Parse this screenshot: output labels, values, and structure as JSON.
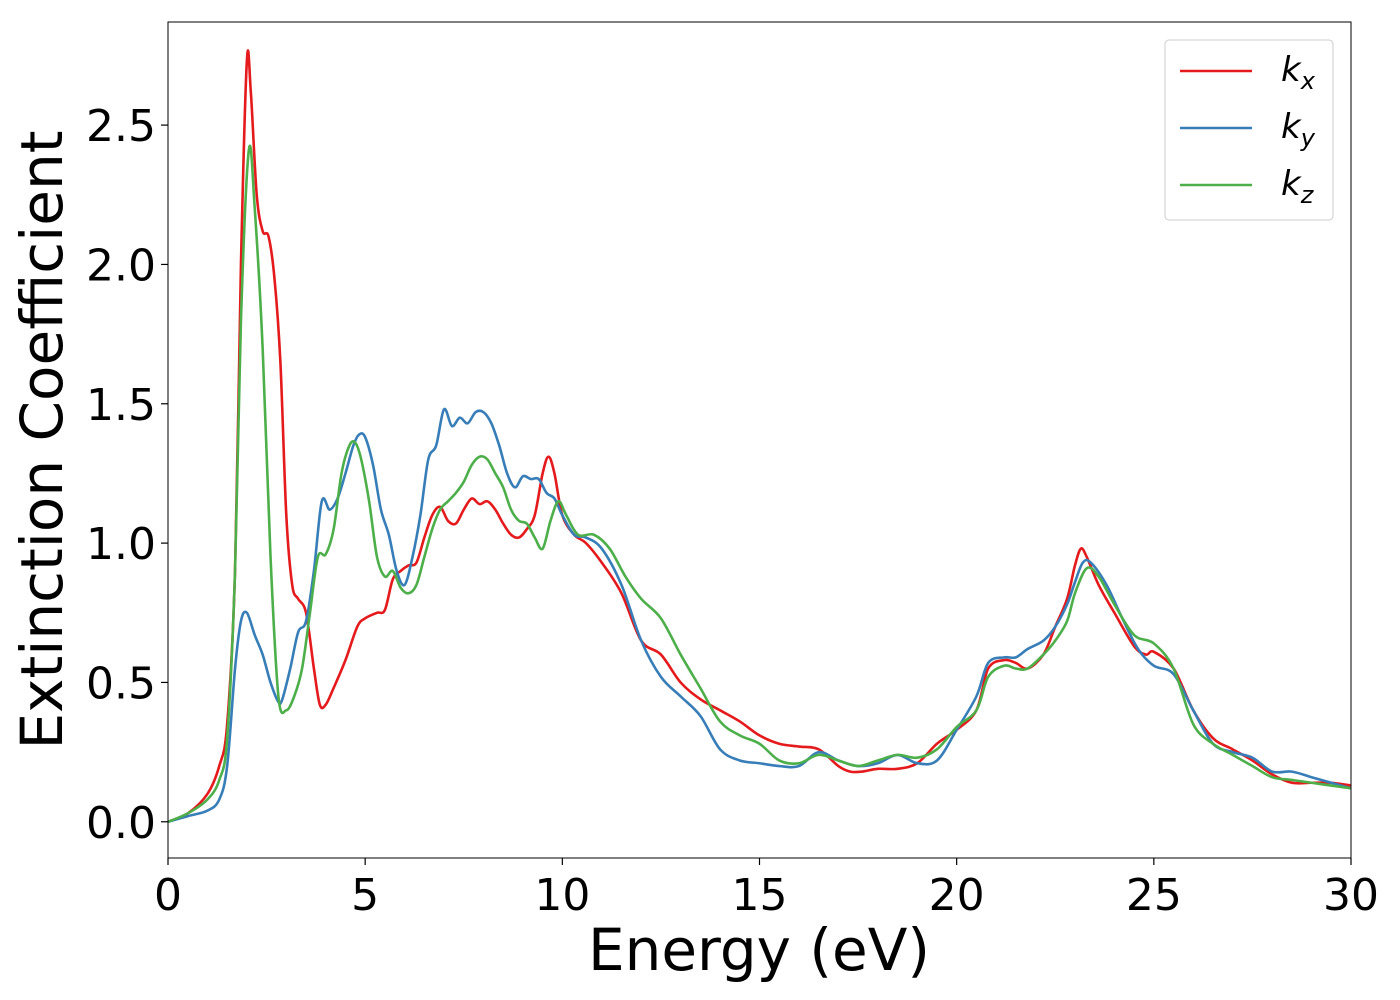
{
  "chart_data": {
    "type": "line",
    "title": "",
    "xlabel": "Energy (eV)",
    "ylabel": "Extinction Coefficient",
    "xlim": [
      0,
      30
    ],
    "ylim": [
      -0.13,
      2.87
    ],
    "xticks": [
      0,
      5,
      10,
      15,
      20,
      25,
      30
    ],
    "xtick_labels": [
      "0",
      "5",
      "10",
      "15",
      "20",
      "25",
      "30"
    ],
    "yticks": [
      0.0,
      0.5,
      1.0,
      1.5,
      2.0,
      2.5
    ],
    "ytick_labels": [
      "0.0",
      "0.5",
      "1.0",
      "1.5",
      "2.0",
      "2.5"
    ],
    "grid": false,
    "legend_position": "top-right",
    "series": [
      {
        "name": "k_x",
        "legend_base": "k",
        "legend_sub": "x",
        "color": "#e41a1c",
        "x": [
          0,
          0.5,
          1.0,
          1.3,
          1.5,
          1.7,
          1.85,
          2.0,
          2.1,
          2.25,
          2.4,
          2.55,
          2.7,
          2.85,
          3.0,
          3.15,
          3.3,
          3.5,
          3.7,
          3.85,
          4.0,
          4.2,
          4.5,
          4.8,
          5.0,
          5.3,
          5.5,
          5.7,
          5.9,
          6.1,
          6.3,
          6.5,
          6.7,
          6.9,
          7.1,
          7.3,
          7.5,
          7.7,
          7.9,
          8.1,
          8.3,
          8.5,
          8.7,
          8.9,
          9.1,
          9.3,
          9.5,
          9.65,
          9.8,
          10.0,
          10.3,
          10.6,
          11.0,
          11.5,
          12.0,
          12.5,
          13.0,
          13.5,
          14.0,
          14.5,
          15.0,
          15.5,
          16.0,
          16.5,
          17.0,
          17.3,
          17.6,
          18.0,
          18.5,
          19.0,
          19.5,
          20.0,
          20.5,
          20.8,
          21.2,
          21.5,
          21.8,
          22.2,
          22.5,
          22.8,
          23.0,
          23.15,
          23.3,
          23.6,
          24.0,
          24.5,
          24.8,
          25.0,
          25.5,
          26.0,
          26.5,
          27.0,
          27.5,
          28.0,
          28.5,
          29.0,
          29.5,
          30.0
        ],
        "values": [
          0.0,
          0.03,
          0.1,
          0.2,
          0.35,
          0.9,
          2.0,
          2.73,
          2.62,
          2.25,
          2.12,
          2.1,
          1.95,
          1.65,
          1.1,
          0.85,
          0.8,
          0.75,
          0.55,
          0.42,
          0.42,
          0.48,
          0.58,
          0.7,
          0.73,
          0.75,
          0.76,
          0.87,
          0.9,
          0.92,
          0.93,
          1.02,
          1.1,
          1.13,
          1.08,
          1.07,
          1.12,
          1.16,
          1.14,
          1.15,
          1.12,
          1.07,
          1.03,
          1.02,
          1.05,
          1.1,
          1.25,
          1.31,
          1.25,
          1.1,
          1.03,
          1.0,
          0.93,
          0.82,
          0.65,
          0.6,
          0.5,
          0.44,
          0.4,
          0.36,
          0.31,
          0.28,
          0.27,
          0.26,
          0.2,
          0.18,
          0.18,
          0.19,
          0.19,
          0.21,
          0.28,
          0.33,
          0.4,
          0.55,
          0.58,
          0.57,
          0.55,
          0.6,
          0.7,
          0.8,
          0.92,
          0.98,
          0.95,
          0.85,
          0.75,
          0.63,
          0.6,
          0.61,
          0.55,
          0.4,
          0.3,
          0.26,
          0.22,
          0.17,
          0.14,
          0.14,
          0.14,
          0.13
        ]
      },
      {
        "name": "k_y",
        "legend_base": "k",
        "legend_sub": "y",
        "color": "#377eb8",
        "x": [
          0,
          0.5,
          1.0,
          1.3,
          1.5,
          1.7,
          1.85,
          2.0,
          2.2,
          2.4,
          2.6,
          2.8,
          2.9,
          3.1,
          3.3,
          3.5,
          3.7,
          3.9,
          4.1,
          4.3,
          4.5,
          4.7,
          4.85,
          5.0,
          5.2,
          5.4,
          5.6,
          5.8,
          6.0,
          6.2,
          6.4,
          6.6,
          6.8,
          7.0,
          7.2,
          7.4,
          7.6,
          7.8,
          8.0,
          8.2,
          8.4,
          8.6,
          8.8,
          9.0,
          9.2,
          9.4,
          9.6,
          9.8,
          10.0,
          10.3,
          10.6,
          11.0,
          11.5,
          12.0,
          12.5,
          13.0,
          13.5,
          14.0,
          14.5,
          15.0,
          15.5,
          16.0,
          16.5,
          17.0,
          17.5,
          18.0,
          18.5,
          19.0,
          19.5,
          20.0,
          20.5,
          20.8,
          21.2,
          21.5,
          21.8,
          22.2,
          22.5,
          22.8,
          23.0,
          23.2,
          23.4,
          23.8,
          24.2,
          24.6,
          25.0,
          25.5,
          26.0,
          26.5,
          27.0,
          27.5,
          28.0,
          28.5,
          29.0,
          29.5,
          30.0
        ],
        "values": [
          0.0,
          0.02,
          0.04,
          0.08,
          0.2,
          0.55,
          0.72,
          0.75,
          0.67,
          0.6,
          0.5,
          0.43,
          0.44,
          0.55,
          0.68,
          0.72,
          0.9,
          1.15,
          1.12,
          1.16,
          1.25,
          1.35,
          1.39,
          1.38,
          1.28,
          1.12,
          1.03,
          0.9,
          0.85,
          0.95,
          1.1,
          1.3,
          1.35,
          1.48,
          1.42,
          1.45,
          1.43,
          1.47,
          1.47,
          1.43,
          1.35,
          1.25,
          1.2,
          1.24,
          1.23,
          1.23,
          1.18,
          1.16,
          1.1,
          1.03,
          1.02,
          0.98,
          0.85,
          0.65,
          0.52,
          0.45,
          0.38,
          0.26,
          0.22,
          0.21,
          0.2,
          0.2,
          0.25,
          0.22,
          0.2,
          0.21,
          0.24,
          0.21,
          0.22,
          0.33,
          0.45,
          0.57,
          0.59,
          0.59,
          0.62,
          0.65,
          0.7,
          0.78,
          0.86,
          0.93,
          0.93,
          0.85,
          0.73,
          0.62,
          0.56,
          0.53,
          0.4,
          0.28,
          0.25,
          0.23,
          0.18,
          0.18,
          0.16,
          0.14,
          0.12
        ]
      },
      {
        "name": "k_z",
        "legend_base": "k",
        "legend_sub": "z",
        "color": "#4daf4a",
        "x": [
          0,
          0.5,
          1.0,
          1.3,
          1.5,
          1.7,
          1.85,
          2.05,
          2.2,
          2.4,
          2.6,
          2.8,
          3.0,
          3.2,
          3.4,
          3.6,
          3.8,
          4.0,
          4.2,
          4.4,
          4.6,
          4.75,
          4.9,
          5.1,
          5.3,
          5.5,
          5.7,
          5.9,
          6.1,
          6.3,
          6.5,
          6.7,
          6.9,
          7.1,
          7.3,
          7.5,
          7.7,
          7.9,
          8.1,
          8.3,
          8.5,
          8.7,
          8.9,
          9.1,
          9.3,
          9.5,
          9.7,
          9.9,
          10.1,
          10.4,
          10.8,
          11.2,
          11.6,
          12.0,
          12.5,
          13.0,
          13.5,
          14.0,
          14.5,
          15.0,
          15.5,
          16.0,
          16.5,
          17.0,
          17.5,
          18.0,
          18.5,
          19.0,
          19.5,
          20.0,
          20.5,
          20.8,
          21.2,
          21.5,
          21.8,
          22.2,
          22.5,
          22.8,
          23.0,
          23.3,
          23.6,
          24.0,
          24.5,
          25.0,
          25.5,
          26.0,
          26.5,
          27.0,
          27.5,
          28.0,
          28.5,
          29.0,
          29.5,
          30.0
        ],
        "values": [
          0.0,
          0.03,
          0.08,
          0.15,
          0.3,
          0.9,
          1.8,
          2.41,
          2.2,
          1.7,
          0.95,
          0.45,
          0.4,
          0.45,
          0.55,
          0.75,
          0.95,
          0.96,
          1.05,
          1.25,
          1.35,
          1.36,
          1.3,
          1.15,
          0.95,
          0.88,
          0.9,
          0.84,
          0.82,
          0.85,
          0.95,
          1.05,
          1.12,
          1.15,
          1.18,
          1.22,
          1.28,
          1.31,
          1.3,
          1.25,
          1.2,
          1.12,
          1.08,
          1.07,
          1.02,
          0.98,
          1.08,
          1.15,
          1.1,
          1.03,
          1.03,
          0.98,
          0.88,
          0.8,
          0.73,
          0.6,
          0.48,
          0.36,
          0.31,
          0.28,
          0.22,
          0.21,
          0.24,
          0.22,
          0.2,
          0.22,
          0.24,
          0.23,
          0.26,
          0.34,
          0.4,
          0.52,
          0.56,
          0.55,
          0.55,
          0.6,
          0.65,
          0.72,
          0.82,
          0.91,
          0.88,
          0.78,
          0.67,
          0.64,
          0.55,
          0.35,
          0.28,
          0.24,
          0.2,
          0.16,
          0.15,
          0.14,
          0.13,
          0.12
        ]
      }
    ]
  }
}
